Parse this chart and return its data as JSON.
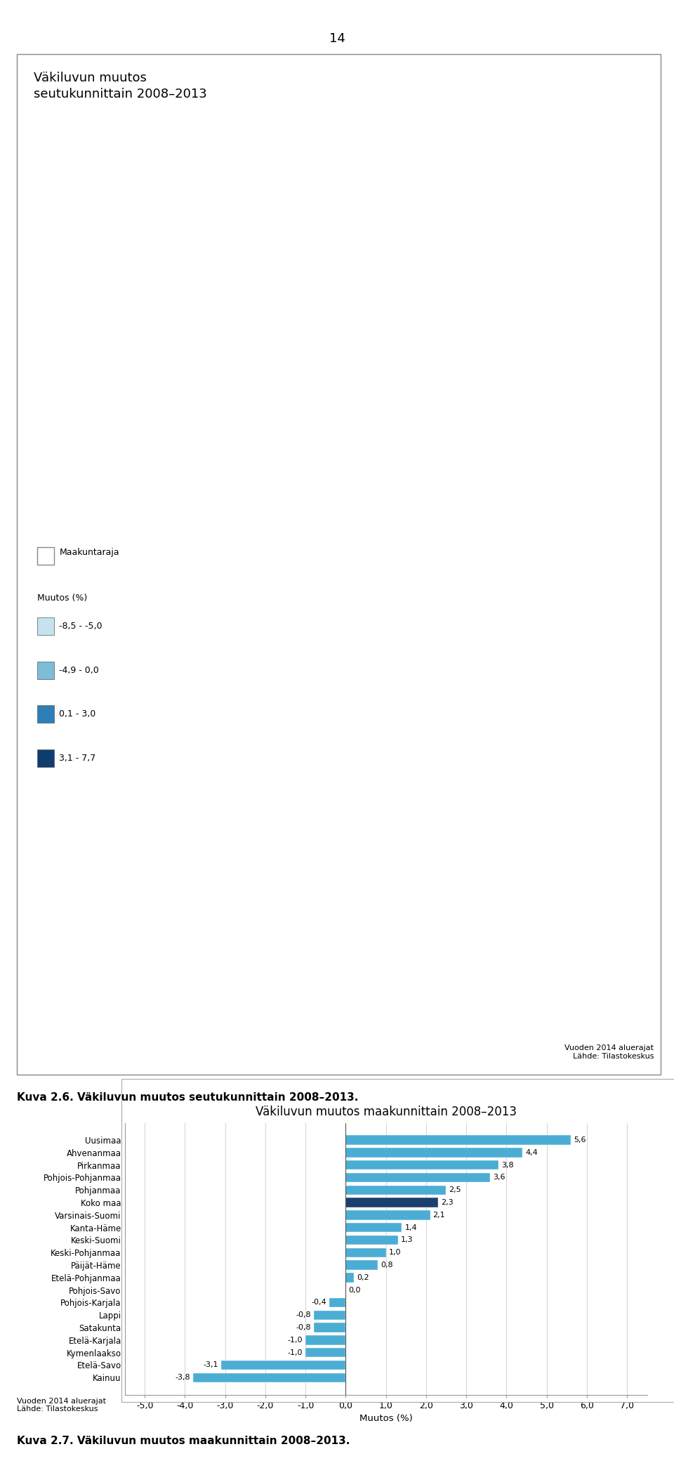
{
  "title": "Väkiluvun muutos maakunnittain 2008–2013",
  "page_number": "14",
  "map_title": "Väkiluvun muutos\nseutukunnittain 2008–2013",
  "caption_map": "Kuva 2.6. Väkiluvun muutos seutukunnittain 2008–2013.",
  "caption_bar": "Kuva 2.7. Väkiluvun muutos maakunnittain 2008–2013.",
  "source_text_map": "Vuoden 2014 aluerajat\nLähde: Tilastokeskus",
  "source_text_bar": "Vuoden 2014 aluerajat\nLähde: Tilastokeskus",
  "xlabel": "Muutos (%)",
  "categories": [
    "Uusimaa",
    "Ahvenanmaa",
    "Pirkanmaa",
    "Pohjois-Pohjanmaa",
    "Pohjanmaa",
    "Koko maa",
    "Varsinais-Suomi",
    "Kanta-Häme",
    "Keski-Suomi",
    "Keski-Pohjanmaa",
    "Päijät-Häme",
    "Etelä-Pohjanmaa",
    "Pohjois-Savo",
    "Pohjois-Karjala",
    "Lappi",
    "Satakunta",
    "Etelä-Karjala",
    "Kymenlaakso",
    "Etelä-Savo",
    "Kainuu"
  ],
  "values": [
    5.6,
    4.4,
    3.8,
    3.6,
    2.5,
    2.3,
    2.1,
    1.4,
    1.3,
    1.0,
    0.8,
    0.2,
    0.0,
    -0.4,
    -0.8,
    -0.8,
    -1.0,
    -1.0,
    -3.1,
    -3.8
  ],
  "bar_color_normal": "#4badd4",
  "bar_color_special": "#1b3f6e",
  "special_index": 5,
  "xlim": [
    -5.5,
    7.5
  ],
  "xticks": [
    -5.0,
    -4.0,
    -3.0,
    -2.0,
    -1.0,
    0.0,
    1.0,
    2.0,
    3.0,
    4.0,
    5.0,
    6.0,
    7.0
  ],
  "xtick_labels": [
    "-5,0",
    "-4,0",
    "-3,0",
    "-2,0",
    "-1,0",
    "0,0",
    "1,0",
    "2,0",
    "3,0",
    "4,0",
    "5,0",
    "6,0",
    "7,0"
  ],
  "legend_border_color": "#aaaaaa",
  "legend_colors": [
    "#c6e2f0",
    "#7dbdd8",
    "#2e7fb8",
    "#0e3e6d"
  ],
  "legend_labels": [
    "-8,5 - -5,0",
    "-4,9 - 0,0",
    "0,1 - 3,0",
    "3,1 - 7,7"
  ],
  "value_fontsize": 8,
  "label_fontsize": 8.5,
  "ytick_fontsize": 8.5,
  "xtick_fontsize": 9,
  "title_fontsize": 12,
  "caption_fontsize": 11,
  "page_fontsize": 13,
  "map_title_fontsize": 13
}
